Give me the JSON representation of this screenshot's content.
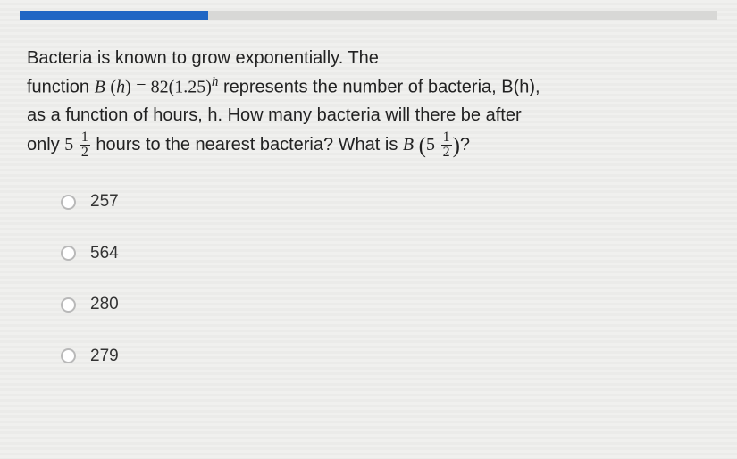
{
  "progress": {
    "percent": 27,
    "track_color": "#d8d8d6",
    "fill_color": "#2066c4"
  },
  "question": {
    "intro": "Bacteria is known to grow exponentially.  The",
    "line2_pre": "function ",
    "fn_letter": "B",
    "fn_var": "h",
    "eq_const": "82",
    "eq_base": "1.25",
    "line2_post": " represents the number of bacteria, B(h),",
    "line3": "as a function of hours, h. How many bacteria will there be after",
    "line4_pre": "only ",
    "time_whole": "5",
    "frac_num": "1",
    "frac_den": "2",
    "line4_mid": " hours to the nearest bacteria? What is ",
    "q_mark": "?"
  },
  "options": [
    {
      "label": "257"
    },
    {
      "label": "564"
    },
    {
      "label": "280"
    },
    {
      "label": "279"
    }
  ],
  "style": {
    "body_font_size": 20,
    "option_font_size": 19,
    "text_color": "#222",
    "radio_border": "#b9b9b9"
  }
}
